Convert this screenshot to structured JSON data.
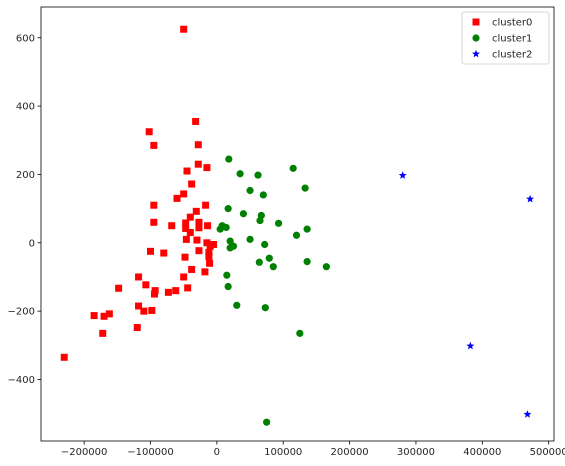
{
  "chart_data": {
    "type": "scatter",
    "title": "",
    "xlabel": "",
    "ylabel": "",
    "xlim": [
      -265000,
      508000
    ],
    "ylim": [
      -580000,
      690000
    ],
    "xticks": [
      -200000,
      -100000,
      0,
      100000,
      200000,
      300000,
      400000,
      500000
    ],
    "yticks": [
      -400,
      -200,
      0,
      200,
      400,
      600
    ],
    "ytick_scale": 1000,
    "grid": false,
    "legend_position": "top-right",
    "series": [
      {
        "name": "cluster0",
        "color": "#ff0000",
        "marker": "square",
        "points": [
          [
            -50000,
            625000
          ],
          [
            -32000,
            355000
          ],
          [
            -102000,
            325000
          ],
          [
            -95000,
            285000
          ],
          [
            -28000,
            287000
          ],
          [
            -28000,
            230000
          ],
          [
            -45000,
            210000
          ],
          [
            -15000,
            220000
          ],
          [
            -38000,
            172000
          ],
          [
            -60000,
            130000
          ],
          [
            -50000,
            143000
          ],
          [
            -95000,
            110000
          ],
          [
            -17000,
            110000
          ],
          [
            -31000,
            92000
          ],
          [
            -40000,
            75000
          ],
          [
            -95000,
            60000
          ],
          [
            -47000,
            58000
          ],
          [
            -27000,
            60000
          ],
          [
            -68000,
            50000
          ],
          [
            -47000,
            42000
          ],
          [
            -14000,
            50000
          ],
          [
            -27000,
            44000
          ],
          [
            -40000,
            30000
          ],
          [
            -30000,
            8000
          ],
          [
            -46000,
            10000
          ],
          [
            -15000,
            0
          ],
          [
            -5000,
            -5000
          ],
          [
            -10000,
            -10000
          ],
          [
            -27000,
            -23000
          ],
          [
            -12000,
            -28000
          ],
          [
            -100000,
            -25000
          ],
          [
            -80000,
            -30000
          ],
          [
            -48000,
            -42000
          ],
          [
            -12000,
            -40000
          ],
          [
            -11000,
            -60000
          ],
          [
            -38000,
            -78000
          ],
          [
            -18000,
            -85000
          ],
          [
            -50000,
            -100000
          ],
          [
            -118000,
            -100000
          ],
          [
            -107000,
            -123000
          ],
          [
            -93000,
            -140000
          ],
          [
            -44000,
            -132000
          ],
          [
            -62000,
            -140000
          ],
          [
            -73000,
            -145000
          ],
          [
            -94000,
            -150000
          ],
          [
            -148000,
            -133000
          ],
          [
            -118000,
            -185000
          ],
          [
            -98000,
            -198000
          ],
          [
            -110000,
            -200000
          ],
          [
            -162000,
            -208000
          ],
          [
            -185000,
            -213000
          ],
          [
            -170000,
            -215000
          ],
          [
            -120000,
            -248000
          ],
          [
            -172000,
            -265000
          ],
          [
            -230000,
            -335000
          ]
        ]
      },
      {
        "name": "cluster1",
        "color": "#008000",
        "marker": "circle",
        "points": [
          [
            18000,
            245000
          ],
          [
            62000,
            198000
          ],
          [
            115000,
            218000
          ],
          [
            35000,
            202000
          ],
          [
            50000,
            153000
          ],
          [
            133000,
            160000
          ],
          [
            70000,
            140000
          ],
          [
            17000,
            100000
          ],
          [
            40000,
            85000
          ],
          [
            67000,
            80000
          ],
          [
            65000,
            65000
          ],
          [
            93000,
            57000
          ],
          [
            8000,
            50000
          ],
          [
            14000,
            45000
          ],
          [
            5000,
            40000
          ],
          [
            136000,
            40000
          ],
          [
            120000,
            22000
          ],
          [
            20000,
            5000
          ],
          [
            50000,
            10000
          ],
          [
            25000,
            -10000
          ],
          [
            20000,
            -15000
          ],
          [
            72000,
            -5000
          ],
          [
            136000,
            -55000
          ],
          [
            64000,
            -57000
          ],
          [
            79000,
            -45000
          ],
          [
            85000,
            -70000
          ],
          [
            165000,
            -70000
          ],
          [
            15000,
            -95000
          ],
          [
            17000,
            -128000
          ],
          [
            30000,
            -183000
          ],
          [
            73000,
            -190000
          ],
          [
            125000,
            -265000
          ],
          [
            75000,
            -525000
          ]
        ]
      },
      {
        "name": "cluster2",
        "color": "#0000ff",
        "marker": "star",
        "points": [
          [
            280000,
            197000
          ],
          [
            472000,
            128000
          ],
          [
            382000,
            -302000
          ],
          [
            468000,
            -502000
          ]
        ]
      }
    ]
  }
}
